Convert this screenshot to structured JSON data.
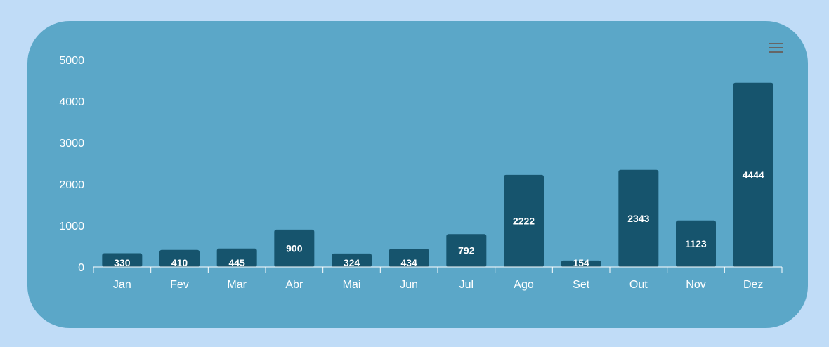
{
  "colors": {
    "page_background": "#c0dcf7",
    "card_background": "#5ba7c8",
    "bar_color": "#16546d",
    "axis_color": "#ffffff",
    "text_color": "#ffffff",
    "menu_icon_color": "#666666"
  },
  "menu": {
    "icon": "hamburger-menu-icon"
  },
  "chart_data": {
    "type": "bar",
    "title": "",
    "xlabel": "",
    "ylabel": "",
    "categories": [
      "Jan",
      "Fev",
      "Mar",
      "Abr",
      "Mai",
      "Jun",
      "Jul",
      "Ago",
      "Set",
      "Out",
      "Nov",
      "Dez"
    ],
    "values": [
      330,
      410,
      445,
      900,
      324,
      434,
      792,
      2222,
      154,
      2343,
      1123,
      4444
    ],
    "ylim": [
      0,
      5000
    ],
    "yticks": [
      0,
      1000,
      2000,
      3000,
      4000,
      5000
    ],
    "grid": false,
    "legend": "none",
    "data_labels": true
  }
}
